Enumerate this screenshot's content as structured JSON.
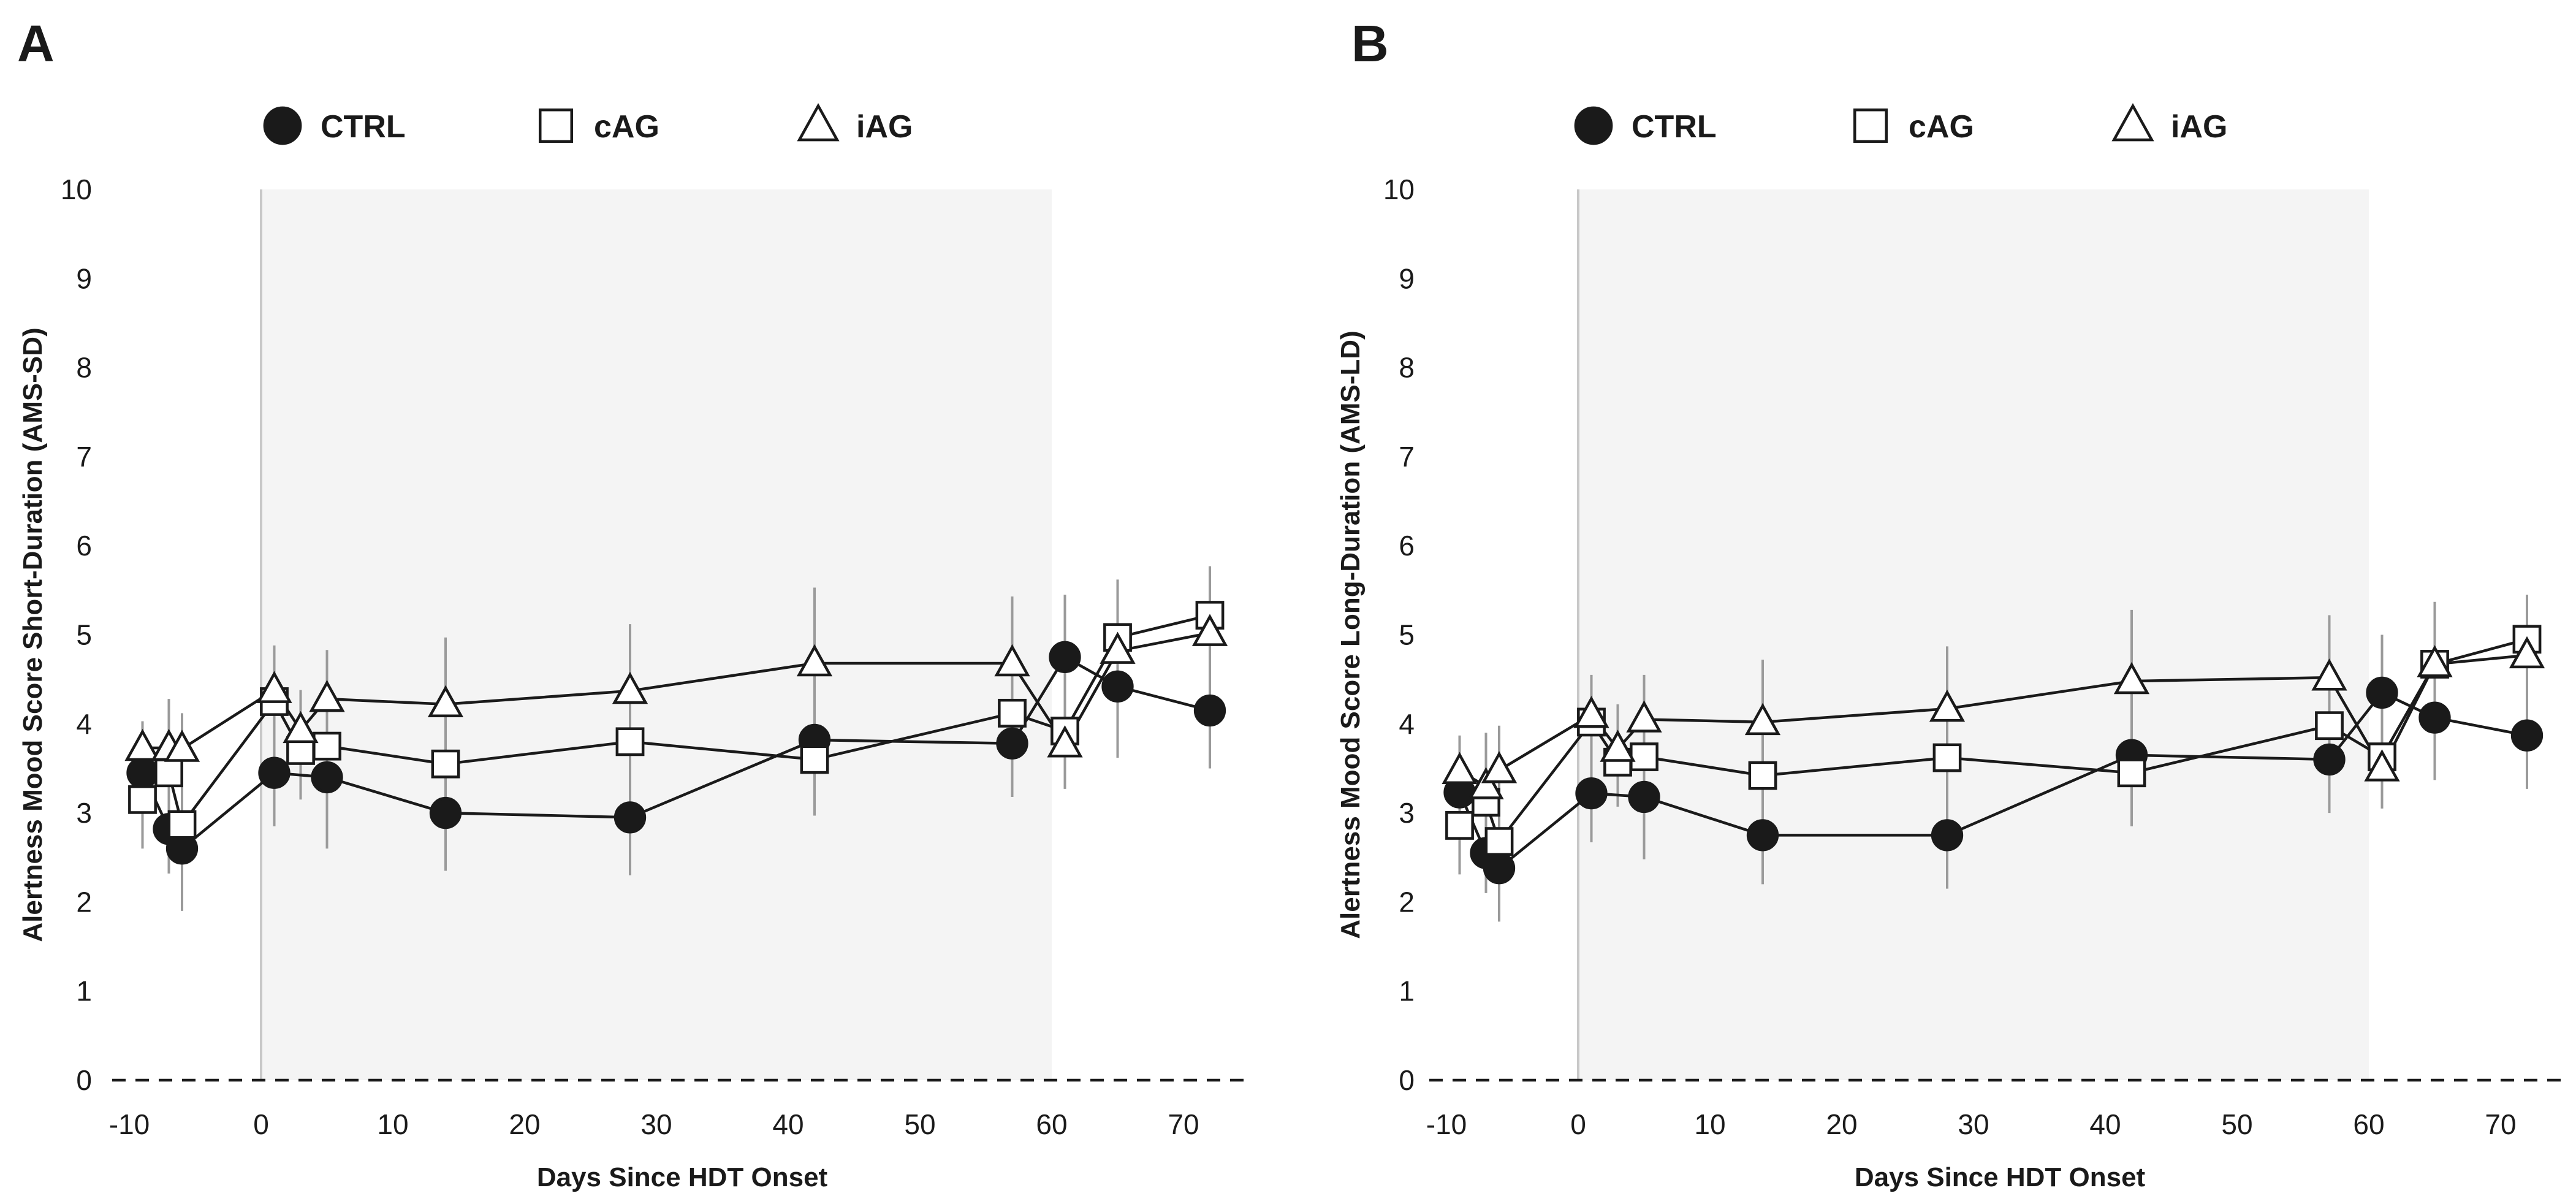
{
  "chart_data": [
    {
      "type": "line",
      "panel": "A",
      "title": "",
      "xlabel": "Days Since HDT Onset",
      "ylabel": "Alertness Mood Score Short-Duration (AMS-SD)",
      "xlim": [
        -11,
        75
      ],
      "ylim": [
        0,
        10
      ],
      "xticks": [
        -10,
        0,
        10,
        20,
        30,
        40,
        50,
        60,
        70
      ],
      "yticks": [
        0,
        1,
        2,
        3,
        4,
        5,
        6,
        7,
        8,
        9,
        10
      ],
      "xtick_labels": [
        "-10",
        "0",
        "10",
        "20",
        "30",
        "40",
        "50",
        "60",
        "70"
      ],
      "ytick_labels": [
        "0",
        "1",
        "2",
        "3",
        "4",
        "5",
        "6",
        "7",
        "8",
        "9",
        "10"
      ],
      "shaded_region": [
        0,
        60
      ],
      "legend": {
        "position": "top",
        "entries": [
          "CTRL",
          "cAG",
          "iAG"
        ]
      },
      "series": [
        {
          "name": "CTRL",
          "marker": "circle",
          "x": [
            -9,
            -7,
            -6,
            1,
            5,
            14,
            28,
            42,
            57,
            61,
            65,
            72
          ],
          "y": [
            3.45,
            2.82,
            2.6,
            3.45,
            3.4,
            3.0,
            2.95,
            3.82,
            3.78,
            4.75,
            4.42,
            4.15
          ],
          "err": [
            0.45,
            0.5,
            0.7,
            0.6,
            0.8,
            0.65,
            0.65,
            0.85,
            0.6,
            0.7,
            0.8,
            0.65
          ]
        },
        {
          "name": "cAG",
          "marker": "square",
          "x": [
            -9,
            -7,
            -6,
            1,
            3,
            5,
            14,
            28,
            42,
            57,
            61,
            65,
            72
          ],
          "y": [
            3.15,
            3.45,
            2.87,
            4.25,
            3.7,
            3.75,
            3.55,
            3.8,
            3.6,
            4.12,
            3.92,
            4.97,
            5.22
          ],
          "err": [
            0.55,
            0.6,
            0.6,
            0.6,
            0.55,
            0.6,
            0.65,
            0.8,
            0.6,
            0.75,
            0.6,
            0.6,
            0.55
          ]
        },
        {
          "name": "iAG",
          "marker": "triangle",
          "x": [
            -9,
            -7,
            -6,
            1,
            3,
            5,
            14,
            28,
            42,
            57,
            61,
            65,
            72
          ],
          "y": [
            3.73,
            3.73,
            3.72,
            4.38,
            3.93,
            4.28,
            4.22,
            4.37,
            4.68,
            4.68,
            3.77,
            4.82,
            5.02
          ],
          "err": [
            0.3,
            0.55,
            0.4,
            0.5,
            0.45,
            0.55,
            0.75,
            0.75,
            0.85,
            0.75,
            0.5,
            0.8,
            0.65
          ]
        }
      ]
    },
    {
      "type": "line",
      "panel": "B",
      "title": "",
      "xlabel": "Days Since HDT Onset",
      "ylabel": "Alertness Mood Score Long-Duration (AMS-LD)",
      "xlim": [
        -11,
        75
      ],
      "ylim": [
        0,
        10
      ],
      "xticks": [
        -10,
        0,
        10,
        20,
        30,
        40,
        50,
        60,
        70
      ],
      "yticks": [
        0,
        1,
        2,
        3,
        4,
        5,
        6,
        7,
        8,
        9,
        10
      ],
      "xtick_labels": [
        "-10",
        "0",
        "10",
        "20",
        "30",
        "40",
        "50",
        "60",
        "70"
      ],
      "ytick_labels": [
        "0",
        "1",
        "2",
        "3",
        "4",
        "5",
        "6",
        "7",
        "8",
        "9",
        "10"
      ],
      "shaded_region": [
        0,
        60
      ],
      "legend": {
        "position": "top",
        "entries": [
          "CTRL",
          "cAG",
          "iAG"
        ]
      },
      "series": [
        {
          "name": "CTRL",
          "marker": "circle",
          "x": [
            -9,
            -7,
            -6,
            1,
            5,
            14,
            28,
            42,
            57,
            61,
            65,
            72
          ],
          "y": [
            3.23,
            2.55,
            2.38,
            3.22,
            3.18,
            2.75,
            2.75,
            3.65,
            3.6,
            4.35,
            4.07,
            3.87
          ],
          "err": [
            0.5,
            0.45,
            0.6,
            0.55,
            0.7,
            0.55,
            0.6,
            0.75,
            0.6,
            0.65,
            0.7,
            0.6
          ]
        },
        {
          "name": "cAG",
          "marker": "square",
          "x": [
            -9,
            -7,
            -6,
            1,
            3,
            5,
            14,
            28,
            42,
            57,
            61,
            65,
            72
          ],
          "y": [
            2.86,
            3.12,
            2.68,
            4.02,
            3.57,
            3.63,
            3.42,
            3.62,
            3.45,
            3.98,
            3.63,
            4.67,
            4.95
          ],
          "err": [
            0.55,
            0.6,
            0.55,
            0.5,
            0.5,
            0.55,
            0.65,
            0.8,
            0.6,
            0.75,
            0.55,
            0.65,
            0.5
          ]
        },
        {
          "name": "iAG",
          "marker": "triangle",
          "x": [
            -9,
            -7,
            -6,
            1,
            3,
            5,
            14,
            28,
            42,
            57,
            61,
            65,
            72
          ],
          "y": [
            3.47,
            3.3,
            3.48,
            4.1,
            3.72,
            4.05,
            4.02,
            4.17,
            4.48,
            4.52,
            3.5,
            4.67,
            4.77
          ],
          "err": [
            0.4,
            0.6,
            0.5,
            0.45,
            0.5,
            0.5,
            0.7,
            0.7,
            0.8,
            0.7,
            0.45,
            0.7,
            0.65
          ]
        }
      ]
    }
  ]
}
